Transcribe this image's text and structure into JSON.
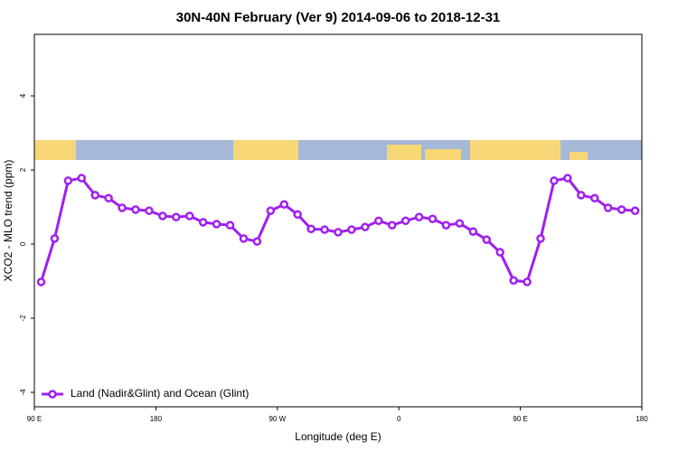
{
  "chart_data": {
    "type": "line",
    "title": "30N-40N February (Ver 9)   2014-09-06 to 2018-12-31",
    "x_label": "Longitude (deg E)",
    "y_label": "XCO2 - MLO trend (ppm)",
    "x": [
      95,
      105,
      115,
      125,
      135,
      145,
      155,
      165,
      175,
      185,
      195,
      205,
      215,
      225,
      235,
      245,
      255,
      265,
      275,
      285,
      295,
      305,
      315,
      325,
      335,
      345,
      355,
      365,
      375,
      385,
      395,
      405,
      415,
      425,
      435,
      445,
      455,
      465,
      475,
      485,
      495,
      505,
      515,
      525,
      535
    ],
    "series": [
      {
        "name": "Land (Nadir&Glint) and Ocean (Glint)",
        "color": "#a020f0",
        "values": [
          -1.02,
          0.15,
          1.71,
          1.78,
          1.32,
          1.24,
          0.98,
          0.93,
          0.9,
          0.76,
          0.73,
          0.76,
          0.59,
          0.54,
          0.51,
          0.15,
          0.07,
          0.9,
          1.07,
          0.8,
          0.41,
          0.39,
          0.32,
          0.39,
          0.46,
          0.63,
          0.51,
          0.63,
          0.73,
          0.68,
          0.51,
          0.56,
          0.34,
          0.12,
          -0.22,
          -0.98,
          -1.02,
          0.15,
          1.71,
          1.78,
          1.32,
          1.24,
          0.98,
          0.93,
          0.9
        ]
      }
    ],
    "xlim": [
      90,
      540
    ],
    "xticks": [
      {
        "value": 90,
        "label": "90 E"
      },
      180,
      {
        "value": 270,
        "label": "90 W"
      },
      {
        "value": 360,
        "label": "0"
      },
      {
        "value": 450,
        "label": "90 E"
      },
      {
        "value": 540,
        "label": "180"
      }
    ],
    "ylim": [
      -4.39,
      5.66
    ],
    "yticks": [
      -4,
      -2,
      0,
      2,
      4
    ],
    "legend": "bottomleft"
  }
}
